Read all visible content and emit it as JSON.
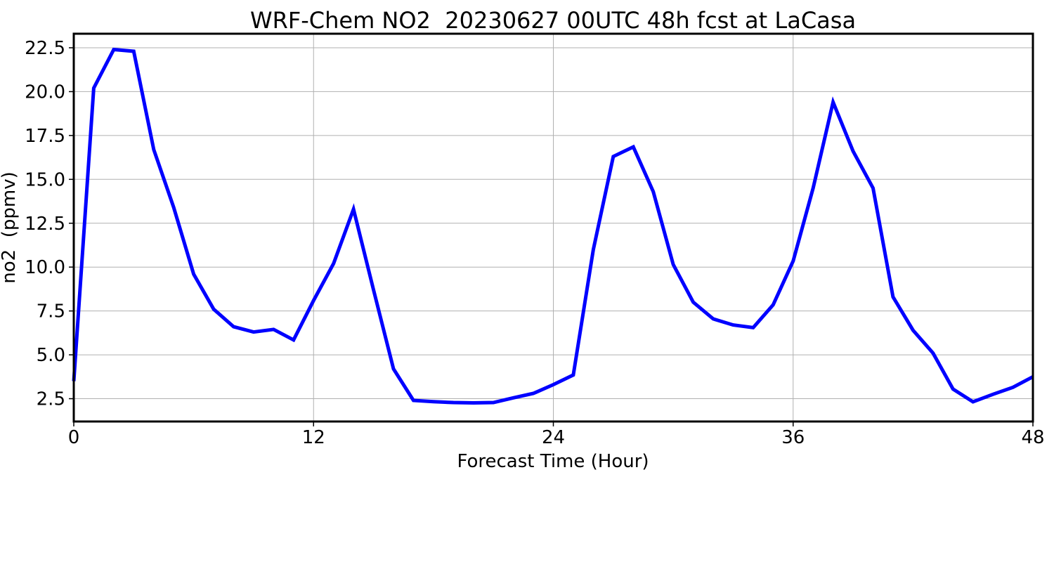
{
  "chart_data": {
    "type": "line",
    "title": "WRF-Chem NO2  20230627 00UTC 48h fcst at LaCasa",
    "xlabel": "Forecast Time (Hour)",
    "ylabel": "no2  (ppmv)",
    "xlim": [
      0,
      48
    ],
    "ylim": [
      1.2,
      23.3
    ],
    "xticks": [
      0,
      12,
      24,
      36,
      48
    ],
    "xtick_labels": [
      "0",
      "12",
      "24",
      "36",
      "48"
    ],
    "yticks": [
      2.5,
      5.0,
      7.5,
      10.0,
      12.5,
      15.0,
      17.5,
      20.0,
      22.5
    ],
    "ytick_labels": [
      "2.5",
      "5.0",
      "7.5",
      "10.0",
      "12.5",
      "15.0",
      "17.5",
      "20.0",
      "22.5"
    ],
    "grid": true,
    "series": [
      {
        "color": "#0000ff",
        "x": [
          0,
          1,
          2,
          3,
          4,
          5,
          6,
          7,
          8,
          9,
          10,
          11,
          12,
          13,
          14,
          15,
          16,
          17,
          18,
          19,
          20,
          21,
          22,
          23,
          24,
          25,
          26,
          27,
          28,
          29,
          30,
          31,
          32,
          33,
          34,
          35,
          36,
          37,
          38,
          39,
          40,
          41,
          42,
          43,
          44,
          45,
          46,
          47,
          48
        ],
        "y": [
          3.5,
          20.2,
          22.4,
          22.3,
          16.7,
          13.4,
          9.6,
          7.6,
          6.6,
          6.3,
          6.45,
          5.85,
          8.1,
          10.2,
          13.3,
          8.7,
          4.2,
          2.4,
          2.33,
          2.28,
          2.26,
          2.28,
          2.55,
          2.8,
          3.3,
          3.85,
          11.0,
          16.3,
          16.85,
          14.3,
          10.15,
          8.0,
          7.05,
          6.7,
          6.55,
          7.85,
          10.35,
          14.5,
          19.4,
          16.6,
          14.5,
          8.3,
          6.4,
          5.1,
          3.05,
          2.32,
          2.75,
          3.15,
          3.75
        ]
      }
    ]
  }
}
